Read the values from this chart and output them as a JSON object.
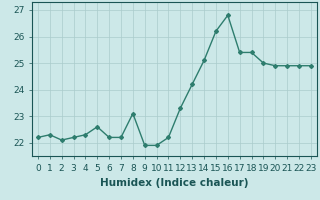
{
  "x": [
    0,
    1,
    2,
    3,
    4,
    5,
    6,
    7,
    8,
    9,
    10,
    11,
    12,
    13,
    14,
    15,
    16,
    17,
    18,
    19,
    20,
    21,
    22,
    23
  ],
  "y": [
    22.2,
    22.3,
    22.1,
    22.2,
    22.3,
    22.6,
    22.2,
    22.2,
    23.1,
    21.9,
    21.9,
    22.2,
    23.3,
    24.2,
    25.1,
    26.2,
    26.8,
    25.4,
    25.4,
    25.0,
    24.9,
    24.9,
    24.9,
    24.9
  ],
  "line_color": "#2e7d6e",
  "marker": "D",
  "marker_size": 2.0,
  "bg_color": "#cce8e8",
  "grid_color": "#aacccc",
  "xlabel": "Humidex (Indice chaleur)",
  "ylim": [
    21.5,
    27.3
  ],
  "xlim": [
    -0.5,
    23.5
  ],
  "yticks": [
    22,
    23,
    24,
    25,
    26,
    27
  ],
  "xtick_labels": [
    "0",
    "1",
    "2",
    "3",
    "4",
    "5",
    "6",
    "7",
    "8",
    "9",
    "10",
    "11",
    "12",
    "13",
    "14",
    "15",
    "16",
    "17",
    "18",
    "19",
    "20",
    "21",
    "22",
    "23"
  ],
  "xlabel_fontsize": 7.5,
  "tick_fontsize": 6.5,
  "line_width": 1.0
}
